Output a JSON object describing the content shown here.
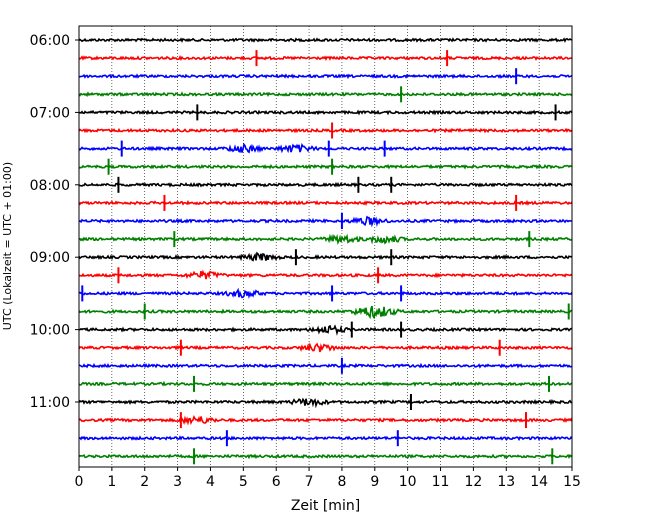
{
  "chart_data": {
    "type": "line",
    "title": "",
    "xlabel": "Zeit  [min]",
    "ylabel": "UTC (Lokalzeit = UTC + 01:00)",
    "xlim": [
      0,
      15
    ],
    "x_ticks": [
      0,
      1,
      2,
      3,
      4,
      5,
      6,
      7,
      8,
      9,
      10,
      11,
      12,
      13,
      14,
      15
    ],
    "y_tick_labels": [
      "06:00",
      "07:00",
      "08:00",
      "09:00",
      "10:00",
      "11:00"
    ],
    "grid": "vertical dotted",
    "trace_interval_min": 15,
    "colors": [
      "#000000",
      "#ff0000",
      "#0000ff",
      "#008000"
    ],
    "traces": [
      {
        "start": "06:00",
        "color": "#000000",
        "spikes": [],
        "bursts": []
      },
      {
        "start": "06:15",
        "color": "#ff0000",
        "spikes": [
          5.4,
          11.2
        ],
        "bursts": []
      },
      {
        "start": "06:30",
        "color": "#0000ff",
        "spikes": [
          13.3
        ],
        "bursts": []
      },
      {
        "start": "06:45",
        "color": "#008000",
        "spikes": [
          9.8
        ],
        "bursts": []
      },
      {
        "start": "07:00",
        "color": "#000000",
        "spikes": [
          3.6,
          14.5
        ],
        "bursts": []
      },
      {
        "start": "07:15",
        "color": "#ff0000",
        "spikes": [
          7.7
        ],
        "bursts": []
      },
      {
        "start": "07:30",
        "color": "#0000ff",
        "spikes": [
          1.3,
          7.6,
          9.3
        ],
        "bursts": [
          5.0,
          6.6
        ]
      },
      {
        "start": "07:45",
        "color": "#008000",
        "spikes": [
          0.9,
          7.7
        ],
        "bursts": []
      },
      {
        "start": "08:00",
        "color": "#000000",
        "spikes": [
          1.2,
          8.5,
          9.5
        ],
        "bursts": []
      },
      {
        "start": "08:15",
        "color": "#ff0000",
        "spikes": [
          2.6,
          13.3
        ],
        "bursts": []
      },
      {
        "start": "08:30",
        "color": "#0000ff",
        "spikes": [
          8.0
        ],
        "bursts": [
          8.8
        ]
      },
      {
        "start": "08:45",
        "color": "#008000",
        "spikes": [
          2.9,
          13.7
        ],
        "bursts": [
          8.0,
          9.3
        ]
      },
      {
        "start": "09:00",
        "color": "#000000",
        "spikes": [
          6.6,
          9.5
        ],
        "bursts": [
          5.5
        ]
      },
      {
        "start": "09:15",
        "color": "#ff0000",
        "spikes": [
          1.2,
          9.1
        ],
        "bursts": [
          3.8
        ]
      },
      {
        "start": "09:30",
        "color": "#0000ff",
        "spikes": [
          0.1,
          7.7,
          9.8
        ],
        "bursts": [
          5.0
        ]
      },
      {
        "start": "09:45",
        "color": "#008000",
        "spikes": [
          2.0,
          14.9
        ],
        "bursts": [
          8.8,
          9.2
        ]
      },
      {
        "start": "10:00",
        "color": "#000000",
        "spikes": [
          8.3,
          9.8
        ],
        "bursts": [
          7.6
        ]
      },
      {
        "start": "10:15",
        "color": "#ff0000",
        "spikes": [
          3.1,
          12.8
        ],
        "bursts": [
          7.3
        ]
      },
      {
        "start": "10:30",
        "color": "#0000ff",
        "spikes": [
          8.0
        ],
        "bursts": []
      },
      {
        "start": "10:45",
        "color": "#008000",
        "spikes": [
          3.5,
          14.3
        ],
        "bursts": []
      },
      {
        "start": "11:00",
        "color": "#000000",
        "spikes": [
          10.1
        ],
        "bursts": [
          7.0
        ]
      },
      {
        "start": "11:15",
        "color": "#ff0000",
        "spikes": [
          3.1,
          13.6
        ],
        "bursts": [
          3.6
        ]
      },
      {
        "start": "11:30",
        "color": "#0000ff",
        "spikes": [
          4.5,
          9.7
        ],
        "bursts": []
      },
      {
        "start": "11:45",
        "color": "#008000",
        "spikes": [
          3.5,
          14.4
        ],
        "bursts": []
      }
    ]
  }
}
